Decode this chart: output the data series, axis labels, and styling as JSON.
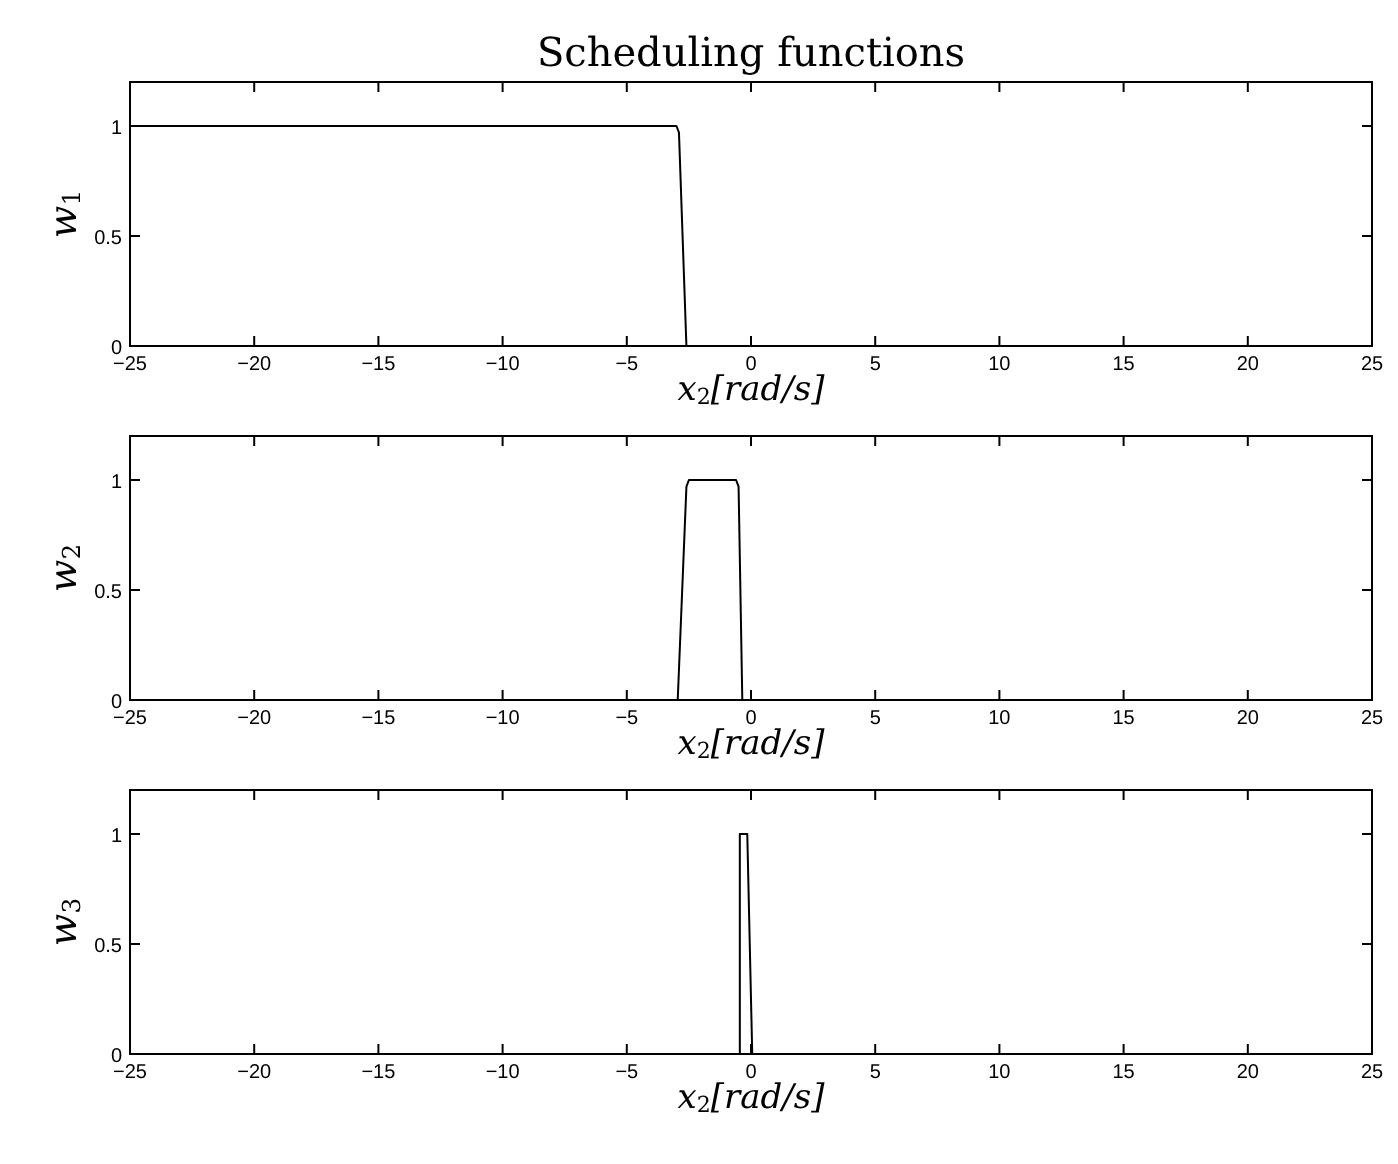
{
  "chart_data": [
    {
      "type": "line",
      "title": "Scheduling functions",
      "xlabel": "x$_{2}$[rad/s]",
      "ylabel": "w$_{1}$",
      "xlim": [
        -25,
        25
      ],
      "xticks": [
        {
          "value": -25,
          "label": "−25"
        },
        {
          "value": -20,
          "label": "−20"
        },
        {
          "value": -15,
          "label": "−15"
        },
        {
          "value": -10,
          "label": "−10"
        },
        {
          "value": -5,
          "label": "−5"
        },
        0,
        5,
        10,
        15,
        20,
        25
      ],
      "ylim": [
        0,
        1.2
      ],
      "yticks": [
        0,
        0.5,
        1
      ],
      "series": [
        {
          "color": "#000000",
          "x": [
            -25,
            -3,
            -2.9,
            -2.6,
            25
          ],
          "values": [
            1,
            1,
            0.97,
            0,
            0
          ]
        }
      ]
    },
    {
      "type": "line",
      "xlabel": "x$_{2}$[rad/s]",
      "ylabel": "w$_{2}$",
      "xlim": [
        -25,
        25
      ],
      "xticks": [
        {
          "value": -25,
          "label": "−25"
        },
        {
          "value": -20,
          "label": "−20"
        },
        {
          "value": -15,
          "label": "−15"
        },
        {
          "value": -10,
          "label": "−10"
        },
        {
          "value": -5,
          "label": "−5"
        },
        0,
        5,
        10,
        15,
        20,
        25
      ],
      "ylim": [
        0,
        1.2
      ],
      "yticks": [
        0,
        0.5,
        1
      ],
      "series": [
        {
          "color": "#000000",
          "x": [
            -25,
            -2.95,
            -2.6,
            -2.5,
            -0.6,
            -0.5,
            -0.35,
            25
          ],
          "values": [
            0,
            0,
            0.97,
            1,
            1,
            0.97,
            0,
            0
          ]
        }
      ]
    },
    {
      "type": "line",
      "xlabel": "x$_{2}$[rad/s]",
      "ylabel": "w$_{3}$",
      "xlim": [
        -25,
        25
      ],
      "xticks": [
        {
          "value": -25,
          "label": "−25"
        },
        {
          "value": -20,
          "label": "−20"
        },
        {
          "value": -15,
          "label": "−15"
        },
        {
          "value": -10,
          "label": "−10"
        },
        {
          "value": -5,
          "label": "−5"
        },
        0,
        5,
        10,
        15,
        20,
        25
      ],
      "ylim": [
        0,
        1.2
      ],
      "yticks": [
        0,
        0.5,
        1
      ],
      "series": [
        {
          "color": "#000000",
          "x": [
            -25,
            -0.45,
            -0.45,
            -0.15,
            0.05,
            25
          ],
          "values": [
            0,
            0,
            1,
            1,
            0,
            0
          ]
        }
      ]
    }
  ]
}
